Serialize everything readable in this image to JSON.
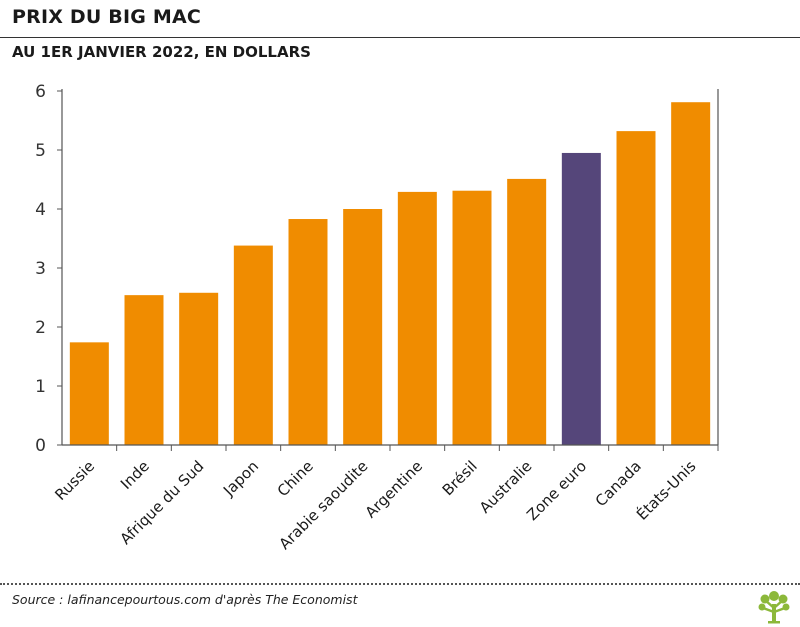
{
  "header": {
    "title": "PRIX DU BIG MAC",
    "subtitle": "AU 1ER JANVIER 2022, EN DOLLARS"
  },
  "footer": {
    "source": "Source : lafinancepourtous.com d'après The Economist",
    "logo_icon": "tree-logo-icon"
  },
  "colors": {
    "bar": "#f08c00",
    "highlight": "#55467a",
    "logo": "#8cb83a",
    "axis": "#555555"
  },
  "chart_data": {
    "type": "bar",
    "title": "PRIX DU BIG MAC",
    "subtitle": "AU 1ER JANVIER 2022, EN DOLLARS",
    "xlabel": "",
    "ylabel": "",
    "ylim": [
      0,
      6
    ],
    "yticks": [
      0,
      1,
      2,
      3,
      4,
      5,
      6
    ],
    "grid": false,
    "categories": [
      "Russie",
      "Inde",
      "Afrique du Sud",
      "Japon",
      "Chine",
      "Arabie saoudite",
      "Argentine",
      "Brésil",
      "Australie",
      "Zone euro",
      "Canada",
      "États-Unis"
    ],
    "values": [
      1.74,
      2.54,
      2.58,
      3.38,
      3.83,
      4.0,
      4.29,
      4.31,
      4.51,
      4.95,
      5.32,
      5.81
    ],
    "highlight": [
      "Zone euro"
    ]
  }
}
